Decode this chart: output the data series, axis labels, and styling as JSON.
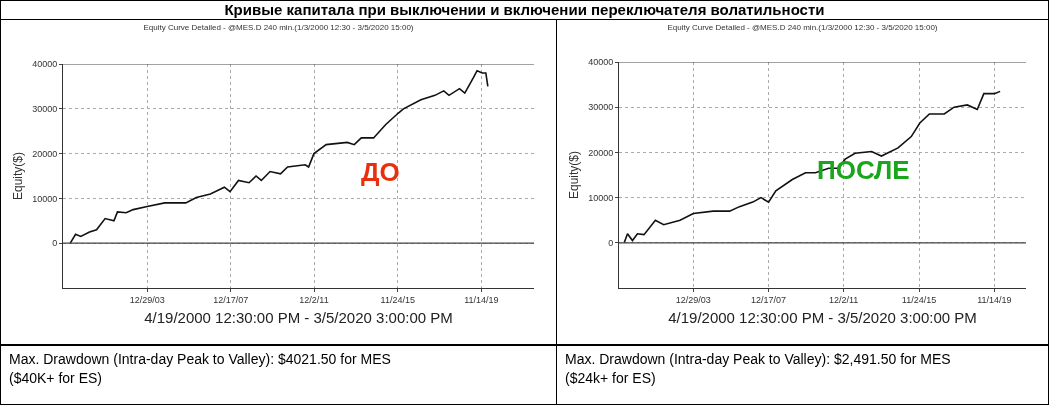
{
  "chart_data": [
    {
      "type": "line",
      "title": "Кривые капитала при выключении и включении переключателя волатильности",
      "subtitle": "Equity Curve Detailed - @MES.D 240 min.(1/3/2000 12:30 - 3/5/2020 15:00)",
      "xlabel": "4/19/2000 12:30:00 PM - 3/5/2020 3:00:00 PM",
      "ylabel": "Equity($)",
      "x": [
        "2000-05-03",
        "2000-08-03",
        "2000-11-01",
        "2001-04-02",
        "2001-08-02",
        "2001-12-29",
        "2002-05-31",
        "2002-07-31",
        "2002-12-29",
        "2003-04-30",
        "2003-12-29",
        "2004-10-29",
        "2005-10-29",
        "2006-04-30",
        "2006-12-29",
        "2007-08-29",
        "2007-12-05",
        "2008-04-30",
        "2008-10-30",
        "2009-03-01",
        "2009-05-31",
        "2009-10-30",
        "2010-04-30",
        "2010-08-30",
        "2011-07-01",
        "2011-08-30",
        "2011-11-30",
        "2012-06-30",
        "2013-06-30",
        "2013-10-30",
        "2014-03-01",
        "2014-09-30",
        "2015-04-30",
        "2015-11-30",
        "2016-03-01",
        "2016-12-30",
        "2017-08-31",
        "2018-01-30",
        "2018-05-01",
        "2018-10-30",
        "2019-01-30",
        "2019-07-01",
        "2019-08-31",
        "2019-11-30",
        "2020-01-30",
        "2020-03-05"
      ],
      "series": [
        {
          "color": "#111111",
          "values": [
            0,
            2000,
            1500,
            2500,
            3000,
            5500,
            5000,
            7000,
            6800,
            7500,
            8200,
            9000,
            9000,
            10200,
            11000,
            12500,
            11500,
            14000,
            13500,
            15000,
            14000,
            16000,
            15500,
            17000,
            17500,
            17000,
            20000,
            22000,
            22500,
            22000,
            23500,
            23500,
            26500,
            29000,
            30000,
            32000,
            33000,
            34000,
            33000,
            34500,
            33500,
            37000,
            38500,
            38000,
            38000,
            35000
          ]
        }
      ],
      "xlim": [
        "1999-12-29",
        "2022-05-15"
      ],
      "xticks": [
        {
          "value": "2003-12-29",
          "label": "12/29/03"
        },
        {
          "value": "2007-12-17",
          "label": "12/17/07"
        },
        {
          "value": "2011-12-02",
          "label": "12/2/11"
        },
        {
          "value": "2015-11-24",
          "label": "11/24/15"
        },
        {
          "value": "2019-11-14",
          "label": "11/14/19"
        }
      ],
      "ylim": [
        -10000,
        40000
      ],
      "yticks": [
        0,
        10000,
        20000,
        30000,
        40000
      ],
      "grid": true,
      "annotations": [
        "ДО",
        "Max. Drawdown (Intra-day Peak to Valley): $4021.50 for MES ($40K+ for ES)"
      ]
    },
    {
      "type": "line",
      "subtitle": "Equity Curve Detailed - @MES.D 240 min.(1/3/2000 12:30 - 3/5/2020 15:00)",
      "xlabel": "4/19/2000 12:30:00 PM - 3/5/2020 3:00:00 PM",
      "ylabel": "Equity($)",
      "x": [
        "2000-05-07",
        "2000-07-10",
        "2000-10-13",
        "2001-01-17",
        "2001-05-24",
        "2001-12-29",
        "2002-06-06",
        "2003-04-19",
        "2003-12-29",
        "2005-01-14",
        "2005-11-28",
        "2006-06-06",
        "2007-02-17",
        "2007-07-25",
        "2007-12-18",
        "2008-05-06",
        "2009-03-20",
        "2009-11-29",
        "2010-06-08",
        "2011-02-18",
        "2011-08-27",
        "2012-01-02",
        "2012-07-10",
        "2013-05-24",
        "2013-12-01",
        "2014-10-16",
        "2015-06-28",
        "2015-12-10",
        "2016-06-11",
        "2017-03-24",
        "2017-09-30",
        "2018-06-12",
        "2018-12-20",
        "2019-04-26",
        "2019-11-16",
        "2020-03-05"
      ],
      "series": [
        {
          "color": "#111111",
          "values": [
            0,
            2000,
            500,
            2000,
            1800,
            5000,
            4000,
            5000,
            6500,
            7000,
            7000,
            8000,
            9000,
            10000,
            9000,
            11500,
            14000,
            15500,
            15500,
            16500,
            16500,
            18500,
            19800,
            20200,
            19200,
            21000,
            23500,
            26500,
            28500,
            28500,
            30000,
            30500,
            29500,
            33000,
            33000,
            33500
          ]
        }
      ],
      "xlim": [
        "2000-01-28",
        "2021-07-16"
      ],
      "xticks": [
        {
          "value": "2003-12-29",
          "label": "12/29/03"
        },
        {
          "value": "2007-12-17",
          "label": "12/17/07"
        },
        {
          "value": "2011-12-02",
          "label": "12/2/11"
        },
        {
          "value": "2015-11-24",
          "label": "11/24/15"
        },
        {
          "value": "2019-11-14",
          "label": "11/14/19"
        }
      ],
      "ylim": [
        -10000,
        40000
      ],
      "yticks": [
        0,
        10000,
        20000,
        30000,
        40000
      ],
      "grid": true,
      "annotations": [
        "ПОСЛЕ",
        "Max. Drawdown (Intra-day Peak to Valley): $2,491.50 for MES ($24k+ for ES)"
      ]
    }
  ]
}
